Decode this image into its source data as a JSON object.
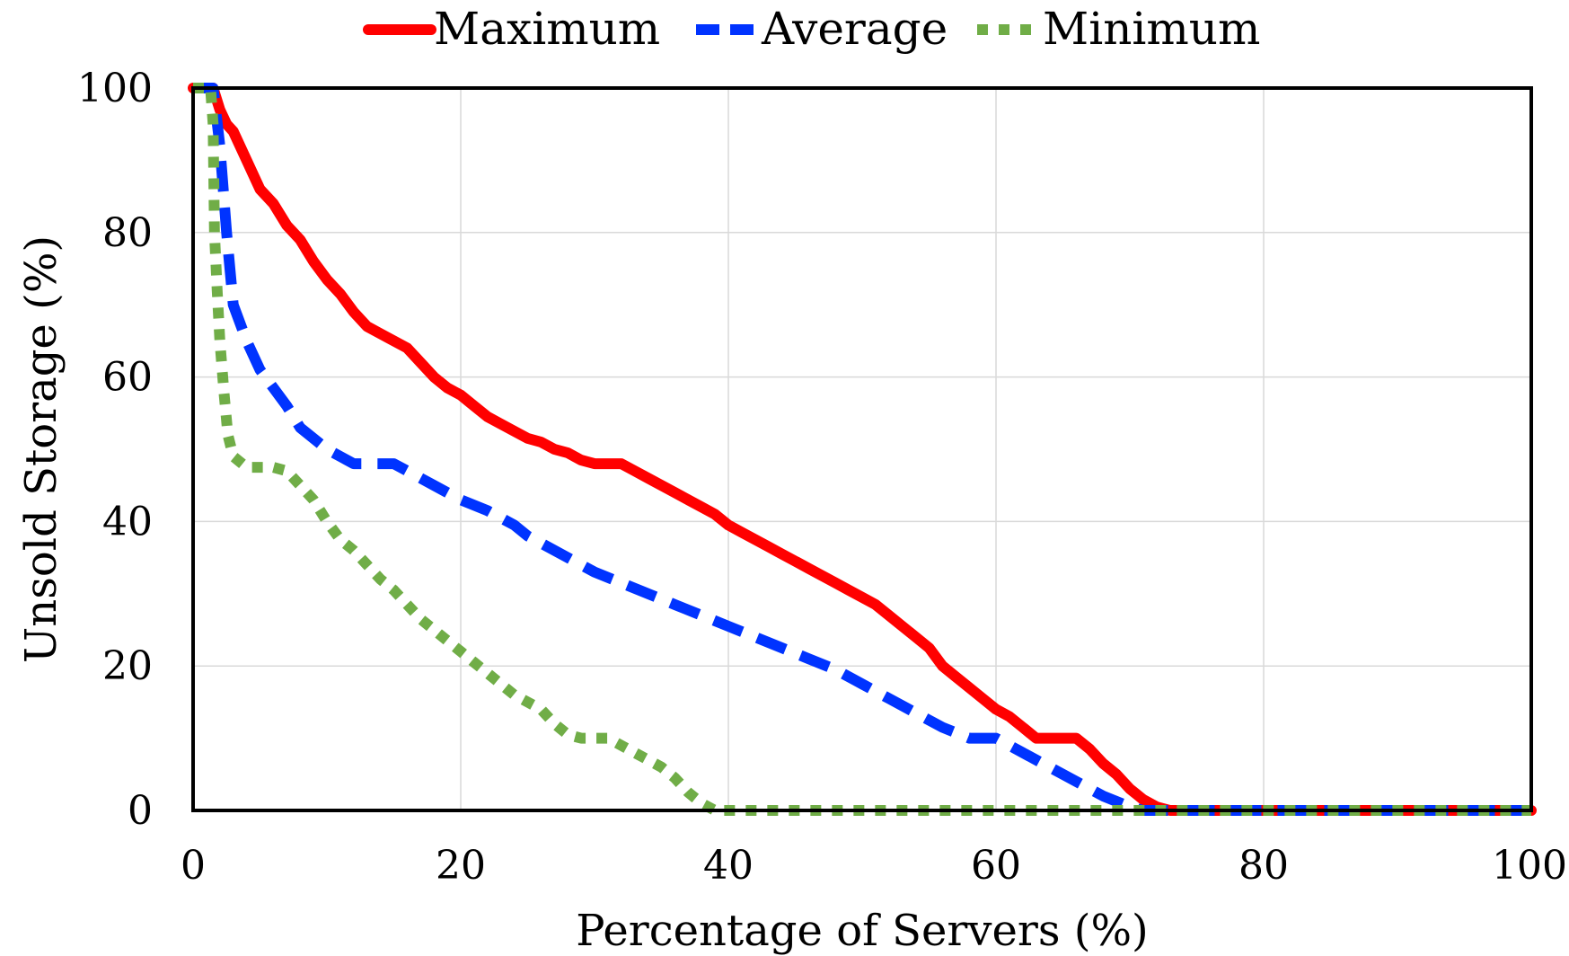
{
  "chart_data": {
    "type": "line",
    "title": "",
    "xlabel": "Percentage of Servers (%)",
    "ylabel": "Unsold Storage (%)",
    "xlim": [
      0,
      100
    ],
    "ylim": [
      0,
      100
    ],
    "x_ticks": [
      "0",
      "20",
      "40",
      "60",
      "80",
      "100"
    ],
    "y_ticks": [
      "0",
      "20",
      "40",
      "60",
      "80",
      "100"
    ],
    "grid": true,
    "legend_position": "top-center",
    "series": [
      {
        "name": "Maximum",
        "color": "#ff0000",
        "style": "solid",
        "points": [
          [
            0,
            100
          ],
          [
            1.5,
            100
          ],
          [
            2,
            97
          ],
          [
            2.5,
            95
          ],
          [
            3,
            94
          ],
          [
            4,
            90
          ],
          [
            5,
            86
          ],
          [
            6,
            84
          ],
          [
            7,
            81
          ],
          [
            8,
            79
          ],
          [
            9,
            76
          ],
          [
            10,
            73.5
          ],
          [
            11,
            71.5
          ],
          [
            12,
            69
          ],
          [
            13,
            67
          ],
          [
            14,
            66
          ],
          [
            16,
            64
          ],
          [
            17,
            62
          ],
          [
            18,
            60
          ],
          [
            19,
            58.5
          ],
          [
            20,
            57.5
          ],
          [
            21,
            56
          ],
          [
            22,
            54.5
          ],
          [
            23,
            53.5
          ],
          [
            24,
            52.5
          ],
          [
            25,
            51.5
          ],
          [
            26,
            51
          ],
          [
            27,
            50
          ],
          [
            28,
            49.5
          ],
          [
            29,
            48.5
          ],
          [
            30,
            48
          ],
          [
            32,
            48
          ],
          [
            33,
            47
          ],
          [
            34,
            46
          ],
          [
            35,
            45
          ],
          [
            36,
            44
          ],
          [
            37,
            43
          ],
          [
            38,
            42
          ],
          [
            39,
            41
          ],
          [
            40,
            39.5
          ],
          [
            41,
            38.5
          ],
          [
            42,
            37.5
          ],
          [
            43,
            36.5
          ],
          [
            44,
            35.5
          ],
          [
            45,
            34.5
          ],
          [
            46,
            33.5
          ],
          [
            47,
            32.5
          ],
          [
            48,
            31.5
          ],
          [
            49,
            30.5
          ],
          [
            50,
            29.5
          ],
          [
            51,
            28.5
          ],
          [
            52,
            27
          ],
          [
            53,
            25.5
          ],
          [
            54,
            24
          ],
          [
            55,
            22.5
          ],
          [
            56,
            20
          ],
          [
            57,
            18.5
          ],
          [
            58,
            17
          ],
          [
            59,
            15.5
          ],
          [
            60,
            14
          ],
          [
            61,
            13
          ],
          [
            62,
            11.5
          ],
          [
            63,
            10
          ],
          [
            66,
            10
          ],
          [
            67,
            8.5
          ],
          [
            68,
            6.5
          ],
          [
            69,
            5
          ],
          [
            70,
            3
          ],
          [
            71,
            1.5
          ],
          [
            72,
            0.5
          ],
          [
            73,
            0
          ],
          [
            100,
            0
          ]
        ]
      },
      {
        "name": "Average",
        "color": "#0033ff",
        "style": "dashed",
        "points": [
          [
            0,
            100
          ],
          [
            1.5,
            100
          ],
          [
            2,
            92
          ],
          [
            2.5,
            80
          ],
          [
            3,
            70
          ],
          [
            4,
            65
          ],
          [
            5,
            61
          ],
          [
            6,
            58.5
          ],
          [
            7,
            56
          ],
          [
            8,
            53
          ],
          [
            9,
            51.5
          ],
          [
            10,
            50
          ],
          [
            11,
            49
          ],
          [
            12,
            48
          ],
          [
            15,
            48
          ],
          [
            16,
            47
          ],
          [
            18,
            45
          ],
          [
            20,
            43
          ],
          [
            22,
            41.5
          ],
          [
            24,
            39.5
          ],
          [
            25,
            38
          ],
          [
            26,
            37
          ],
          [
            28,
            35
          ],
          [
            30,
            33
          ],
          [
            32,
            31.5
          ],
          [
            34,
            30
          ],
          [
            36,
            28.5
          ],
          [
            38,
            27
          ],
          [
            40,
            25.5
          ],
          [
            42,
            24
          ],
          [
            44,
            22.5
          ],
          [
            46,
            21
          ],
          [
            48,
            19.5
          ],
          [
            50,
            17.5
          ],
          [
            52,
            15.5
          ],
          [
            54,
            13.5
          ],
          [
            56,
            11.5
          ],
          [
            58,
            10
          ],
          [
            60,
            10
          ],
          [
            62,
            8
          ],
          [
            64,
            6
          ],
          [
            66,
            4
          ],
          [
            68,
            2
          ],
          [
            70,
            0.5
          ],
          [
            71,
            0
          ],
          [
            100,
            0
          ]
        ]
      },
      {
        "name": "Minimum",
        "color": "#70ad47",
        "style": "dotted",
        "points": [
          [
            0,
            100
          ],
          [
            1.3,
            100
          ],
          [
            1.5,
            95
          ],
          [
            1.6,
            80
          ],
          [
            1.8,
            72
          ],
          [
            2,
            65
          ],
          [
            2.3,
            58
          ],
          [
            2.6,
            52
          ],
          [
            3,
            49
          ],
          [
            4,
            47.5
          ],
          [
            6,
            47.5
          ],
          [
            7,
            47
          ],
          [
            8,
            45
          ],
          [
            9,
            43
          ],
          [
            10,
            40
          ],
          [
            11,
            37.5
          ],
          [
            12,
            36
          ],
          [
            13,
            34
          ],
          [
            14,
            32
          ],
          [
            15,
            30.5
          ],
          [
            16,
            28.5
          ],
          [
            17,
            26.5
          ],
          [
            18,
            25
          ],
          [
            19,
            23.5
          ],
          [
            20,
            22
          ],
          [
            21,
            20.5
          ],
          [
            22,
            19
          ],
          [
            23,
            17.5
          ],
          [
            24,
            16
          ],
          [
            25,
            15
          ],
          [
            26,
            14
          ],
          [
            27,
            12
          ],
          [
            28,
            10.5
          ],
          [
            29,
            10
          ],
          [
            31,
            10
          ],
          [
            32,
            9
          ],
          [
            33,
            8
          ],
          [
            34,
            7
          ],
          [
            35,
            6
          ],
          [
            36,
            4.5
          ],
          [
            37,
            2.5
          ],
          [
            38,
            1
          ],
          [
            39,
            0
          ],
          [
            100,
            0
          ]
        ]
      }
    ]
  }
}
